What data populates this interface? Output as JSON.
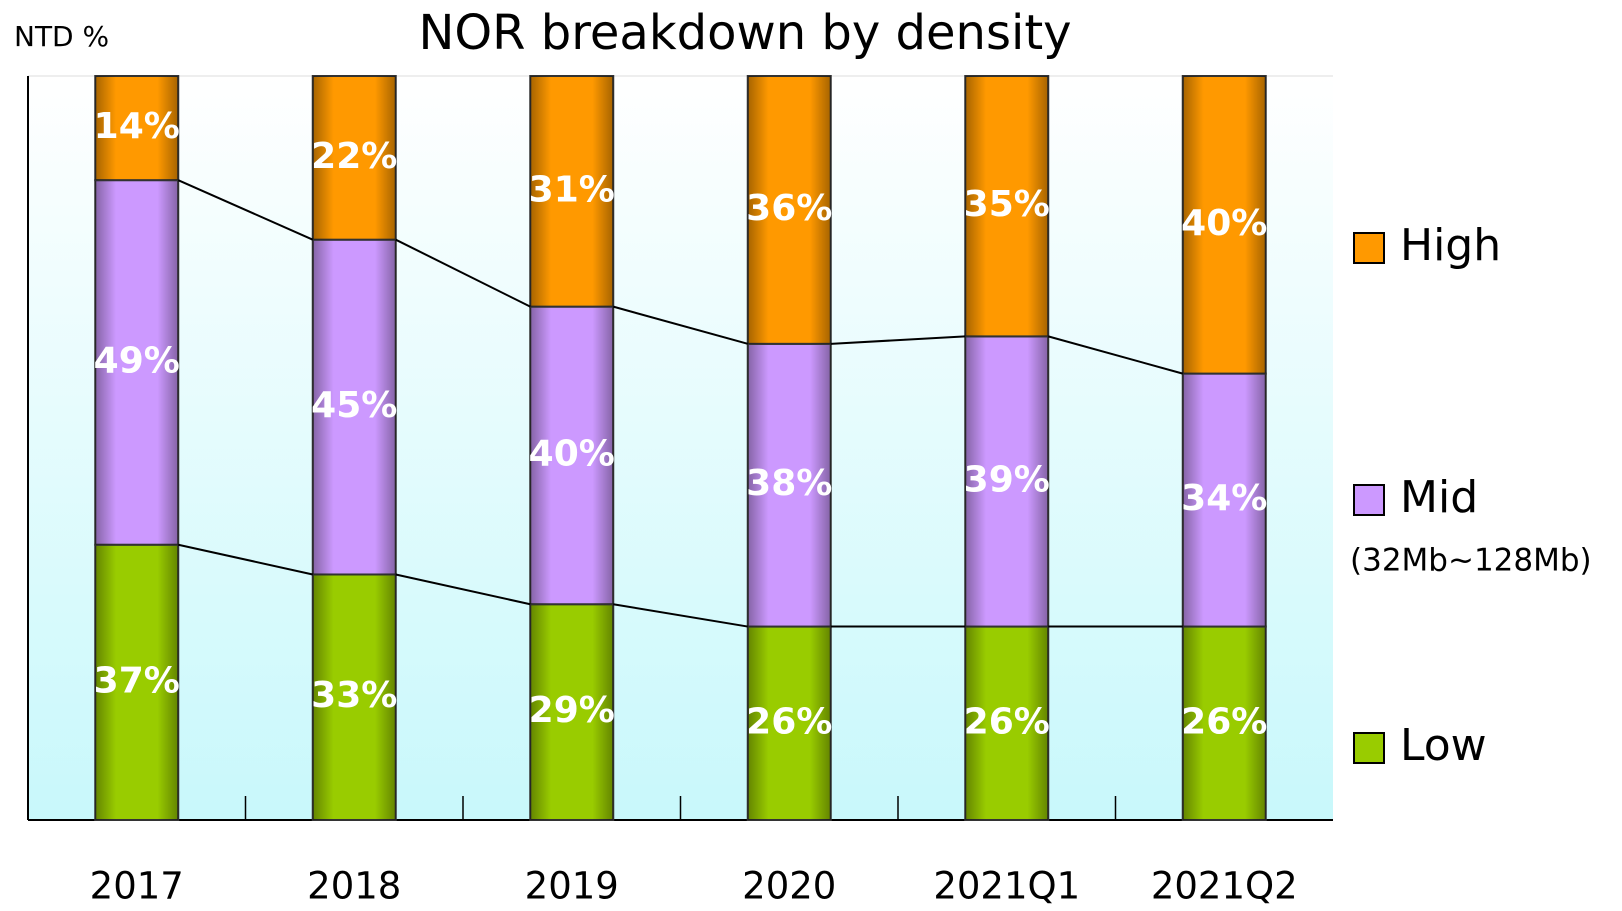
{
  "chart_data": {
    "type": "stacked_bar",
    "title": "NOR breakdown by density",
    "y_axis_label": "NTD %",
    "categories": [
      "2017",
      "2018",
      "2019",
      "2020",
      "2021Q1",
      "2021Q2"
    ],
    "ylim": [
      0,
      100
    ],
    "series": [
      {
        "name": "Low",
        "color": "#99cc00",
        "values": [
          37,
          33,
          29,
          26,
          26,
          26
        ],
        "value_labels": [
          "37%",
          "33%",
          "29%",
          "26%",
          "26%",
          "26%"
        ]
      },
      {
        "name": "Mid",
        "description": "(32Mb~128Mb)",
        "color": "#cc99ff",
        "values": [
          49,
          45,
          40,
          38,
          39,
          34
        ],
        "value_labels": [
          "49%",
          "45%",
          "40%",
          "38%",
          "39%",
          "34%"
        ]
      },
      {
        "name": "High",
        "color": "#ff9900",
        "values": [
          14,
          22,
          31,
          36,
          35,
          40
        ],
        "value_labels": [
          "14%",
          "22%",
          "31%",
          "36%",
          "35%",
          "40%"
        ]
      }
    ],
    "legend": "right"
  }
}
